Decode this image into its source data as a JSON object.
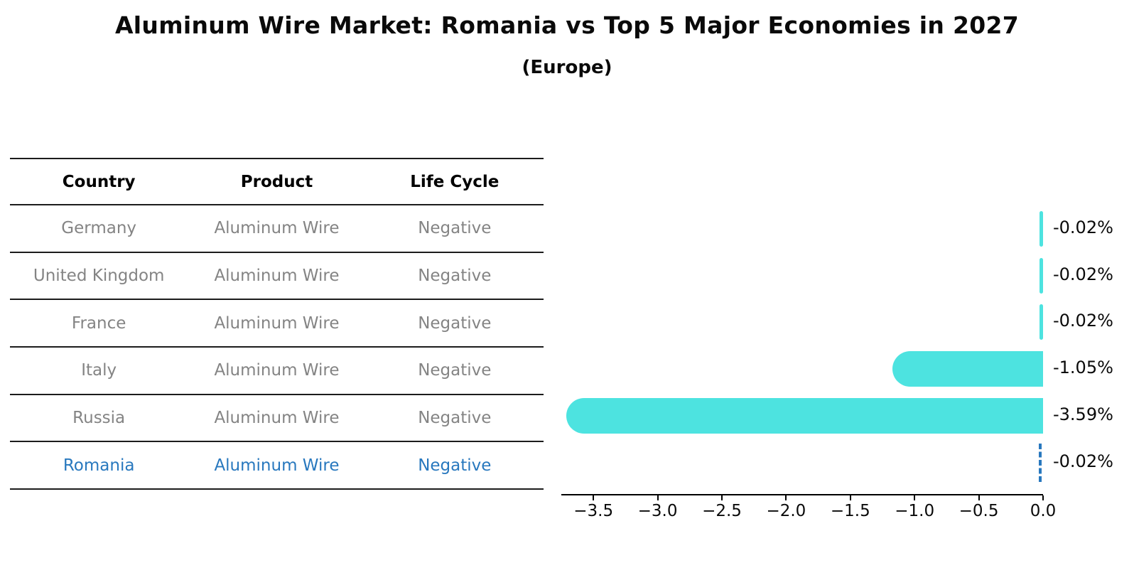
{
  "title": "Aluminum Wire Market: Romania vs Top 5 Major Economies in 2027",
  "subtitle": "(Europe)",
  "table": {
    "headers": [
      "Country",
      "Product",
      "Life Cycle"
    ],
    "rows": [
      {
        "country": "Germany",
        "product": "Aluminum Wire",
        "life_cycle": "Negative",
        "highlight": false
      },
      {
        "country": "United Kingdom",
        "product": "Aluminum Wire",
        "life_cycle": "Negative",
        "highlight": false
      },
      {
        "country": "France",
        "product": "Aluminum Wire",
        "life_cycle": "Negative",
        "highlight": false
      },
      {
        "country": "Italy",
        "product": "Aluminum Wire",
        "life_cycle": "Negative",
        "highlight": false
      },
      {
        "country": "Russia",
        "product": "Aluminum Wire",
        "life_cycle": "Negative",
        "highlight": false
      },
      {
        "country": "Romania",
        "product": "Aluminum Wire",
        "life_cycle": "Negative",
        "highlight": true
      }
    ]
  },
  "chart_data": {
    "type": "bar",
    "orientation": "horizontal",
    "categories": [
      "Germany",
      "United Kingdom",
      "France",
      "Italy",
      "Russia",
      "Romania"
    ],
    "values": [
      -0.02,
      -0.02,
      -0.02,
      -1.05,
      -3.59,
      -0.02
    ],
    "bar_labels": [
      "-0.02%",
      "-0.02%",
      "-0.02%",
      "-1.05%",
      "-3.59%",
      "-0.02%"
    ],
    "x_tick_values": [
      -3.5,
      -3.0,
      -2.5,
      -2.0,
      -1.5,
      -1.0,
      -0.5,
      0.0
    ],
    "x_tick_labels": [
      "−3.5",
      "−3.0",
      "−2.5",
      "−2.0",
      "−1.5",
      "−1.0",
      "−0.5",
      "0.0"
    ],
    "xlim": [
      -3.75,
      0
    ],
    "grid": false,
    "legend": "none",
    "highlight_index": 5,
    "highlight_style": "dashed-outline"
  },
  "colors": {
    "bar": "#4de3e0",
    "highlight": "#2878be",
    "row_text": "#848484",
    "header_text": "#000000",
    "axis": "#000000"
  }
}
